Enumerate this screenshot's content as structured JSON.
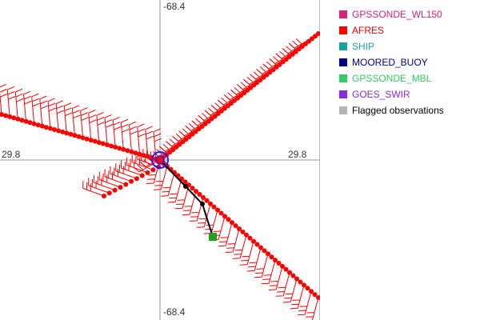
{
  "axes": {
    "top_label": "-68.4",
    "bottom_label": "-68.4",
    "left_label": "29.8",
    "right_label": "29.8"
  },
  "legend": {
    "items": [
      {
        "label": "GPSSONDE_WL150",
        "color": "#d6217f",
        "text_color": "#d6217f"
      },
      {
        "label": "AFRES",
        "color": "#ff0000",
        "text_color": "#ff0000"
      },
      {
        "label": "SHIP",
        "color": "#17a3a3",
        "text_color": "#17a3a3"
      },
      {
        "label": "MOORED_BUOY",
        "color": "#00008b",
        "text_color": "#00008b"
      },
      {
        "label": "GPSSONDE_MBL",
        "color": "#33cc66",
        "text_color": "#33cc66"
      },
      {
        "label": "GOES_SWIR",
        "color": "#8a2be2",
        "text_color": "#8a2be2"
      },
      {
        "label": "Flagged observations",
        "color": "#b5b5b5",
        "text_color": "#000000"
      }
    ]
  },
  "colors": {
    "afres": "#ff0000",
    "track": "#000000",
    "center_ring": "#1a1aff",
    "end_marker": "#1fa01f",
    "axis_line": "#9a9a9a"
  }
}
